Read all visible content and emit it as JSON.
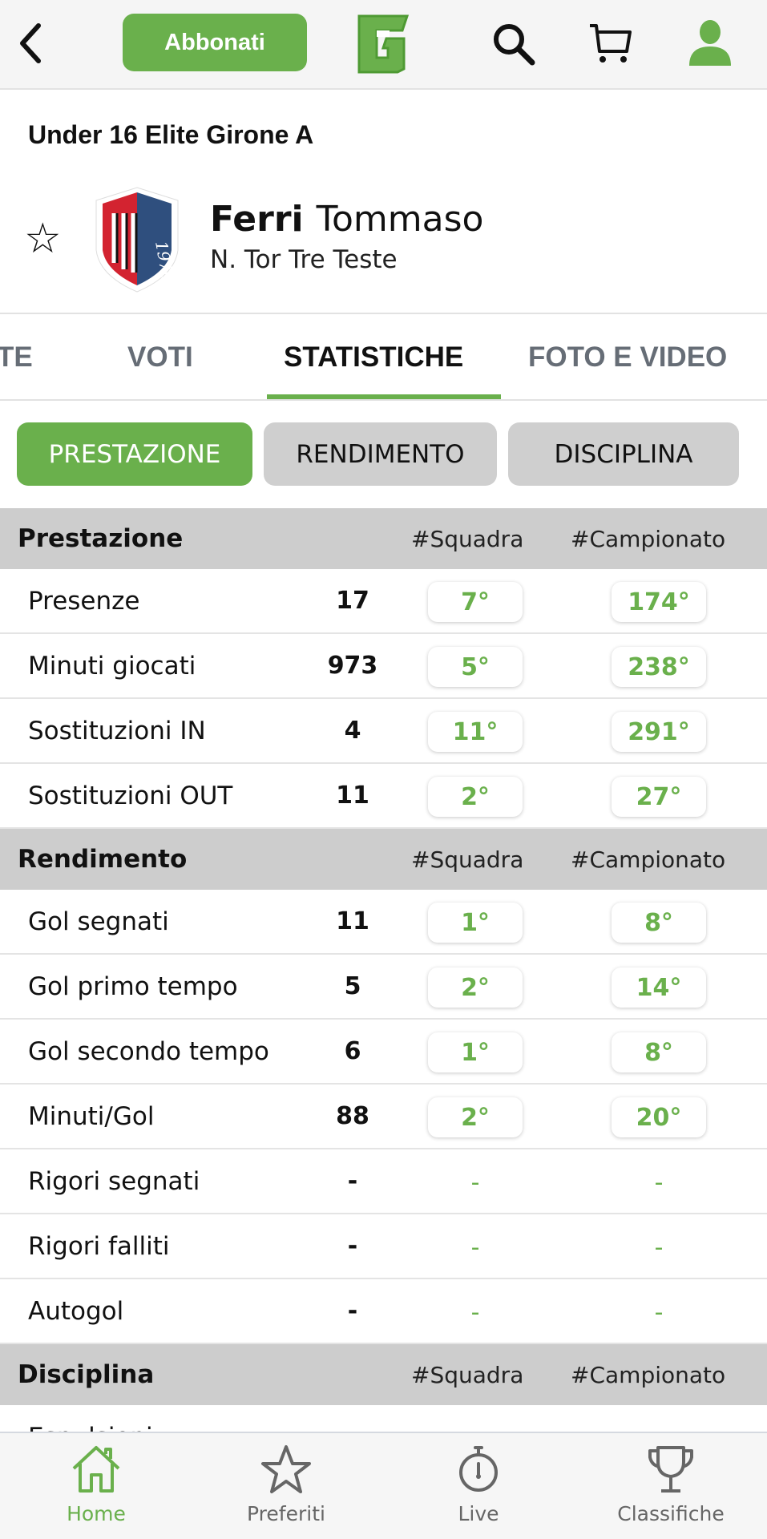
{
  "header": {
    "back_icon": "chevron-left-icon",
    "subscribe_label": "Abbonati",
    "logo_letter": "G",
    "icons": [
      "search-icon",
      "cart-icon",
      "user-icon"
    ],
    "accent": "#6ab04c"
  },
  "competition": "Under 16 Elite  Girone A",
  "player": {
    "surname": "Ferri",
    "name": "Tommaso",
    "club": "N. Tor Tre Teste",
    "crest_text": "1976"
  },
  "tabs": [
    {
      "label": "TE"
    },
    {
      "label": "VOTI"
    },
    {
      "label": "STATISTICHE",
      "active": true
    },
    {
      "label": "FOTO E VIDEO"
    }
  ],
  "filters": [
    {
      "label": "PRESTAZIONE",
      "active": true
    },
    {
      "label": "RENDIMENTO"
    },
    {
      "label": "DISCIPLINA"
    }
  ],
  "sections": [
    {
      "title": "Prestazione",
      "col1": "#Squadra",
      "col2": "#Campionato",
      "rows": [
        {
          "label": "Presenze",
          "value": "17",
          "team": "7°",
          "league": "174°"
        },
        {
          "label": "Minuti giocati",
          "value": "973",
          "team": "5°",
          "league": "238°"
        },
        {
          "label": "Sostituzioni IN",
          "value": "4",
          "team": "11°",
          "league": "291°"
        },
        {
          "label": "Sostituzioni OUT",
          "value": "11",
          "team": "2°",
          "league": "27°"
        }
      ]
    },
    {
      "title": "Rendimento",
      "col1": "#Squadra",
      "col2": "#Campionato",
      "rows": [
        {
          "label": "Gol segnati",
          "value": "11",
          "team": "1°",
          "league": "8°"
        },
        {
          "label": "Gol primo tempo",
          "value": "5",
          "team": "2°",
          "league": "14°"
        },
        {
          "label": "Gol secondo tempo",
          "value": "6",
          "team": "1°",
          "league": "8°"
        },
        {
          "label": "Minuti/Gol",
          "value": "88",
          "team": "2°",
          "league": "20°"
        },
        {
          "label": "Rigori segnati",
          "value": "-",
          "team": "-",
          "league": "-"
        },
        {
          "label": "Rigori falliti",
          "value": "-",
          "team": "-",
          "league": "-"
        },
        {
          "label": "Autogol",
          "value": "-",
          "team": "-",
          "league": "-"
        }
      ]
    },
    {
      "title": "Disciplina",
      "col1": "#Squadra",
      "col2": "#Campionato",
      "rows": [
        {
          "label": "Espulsioni",
          "value": "",
          "team": "",
          "league": ""
        }
      ]
    }
  ],
  "bottom_nav": [
    {
      "label": "Home",
      "icon": "home-icon",
      "active": true
    },
    {
      "label": "Preferiti",
      "icon": "star-icon"
    },
    {
      "label": "Live",
      "icon": "stopwatch-icon"
    },
    {
      "label": "Classifiche",
      "icon": "trophy-icon"
    }
  ]
}
